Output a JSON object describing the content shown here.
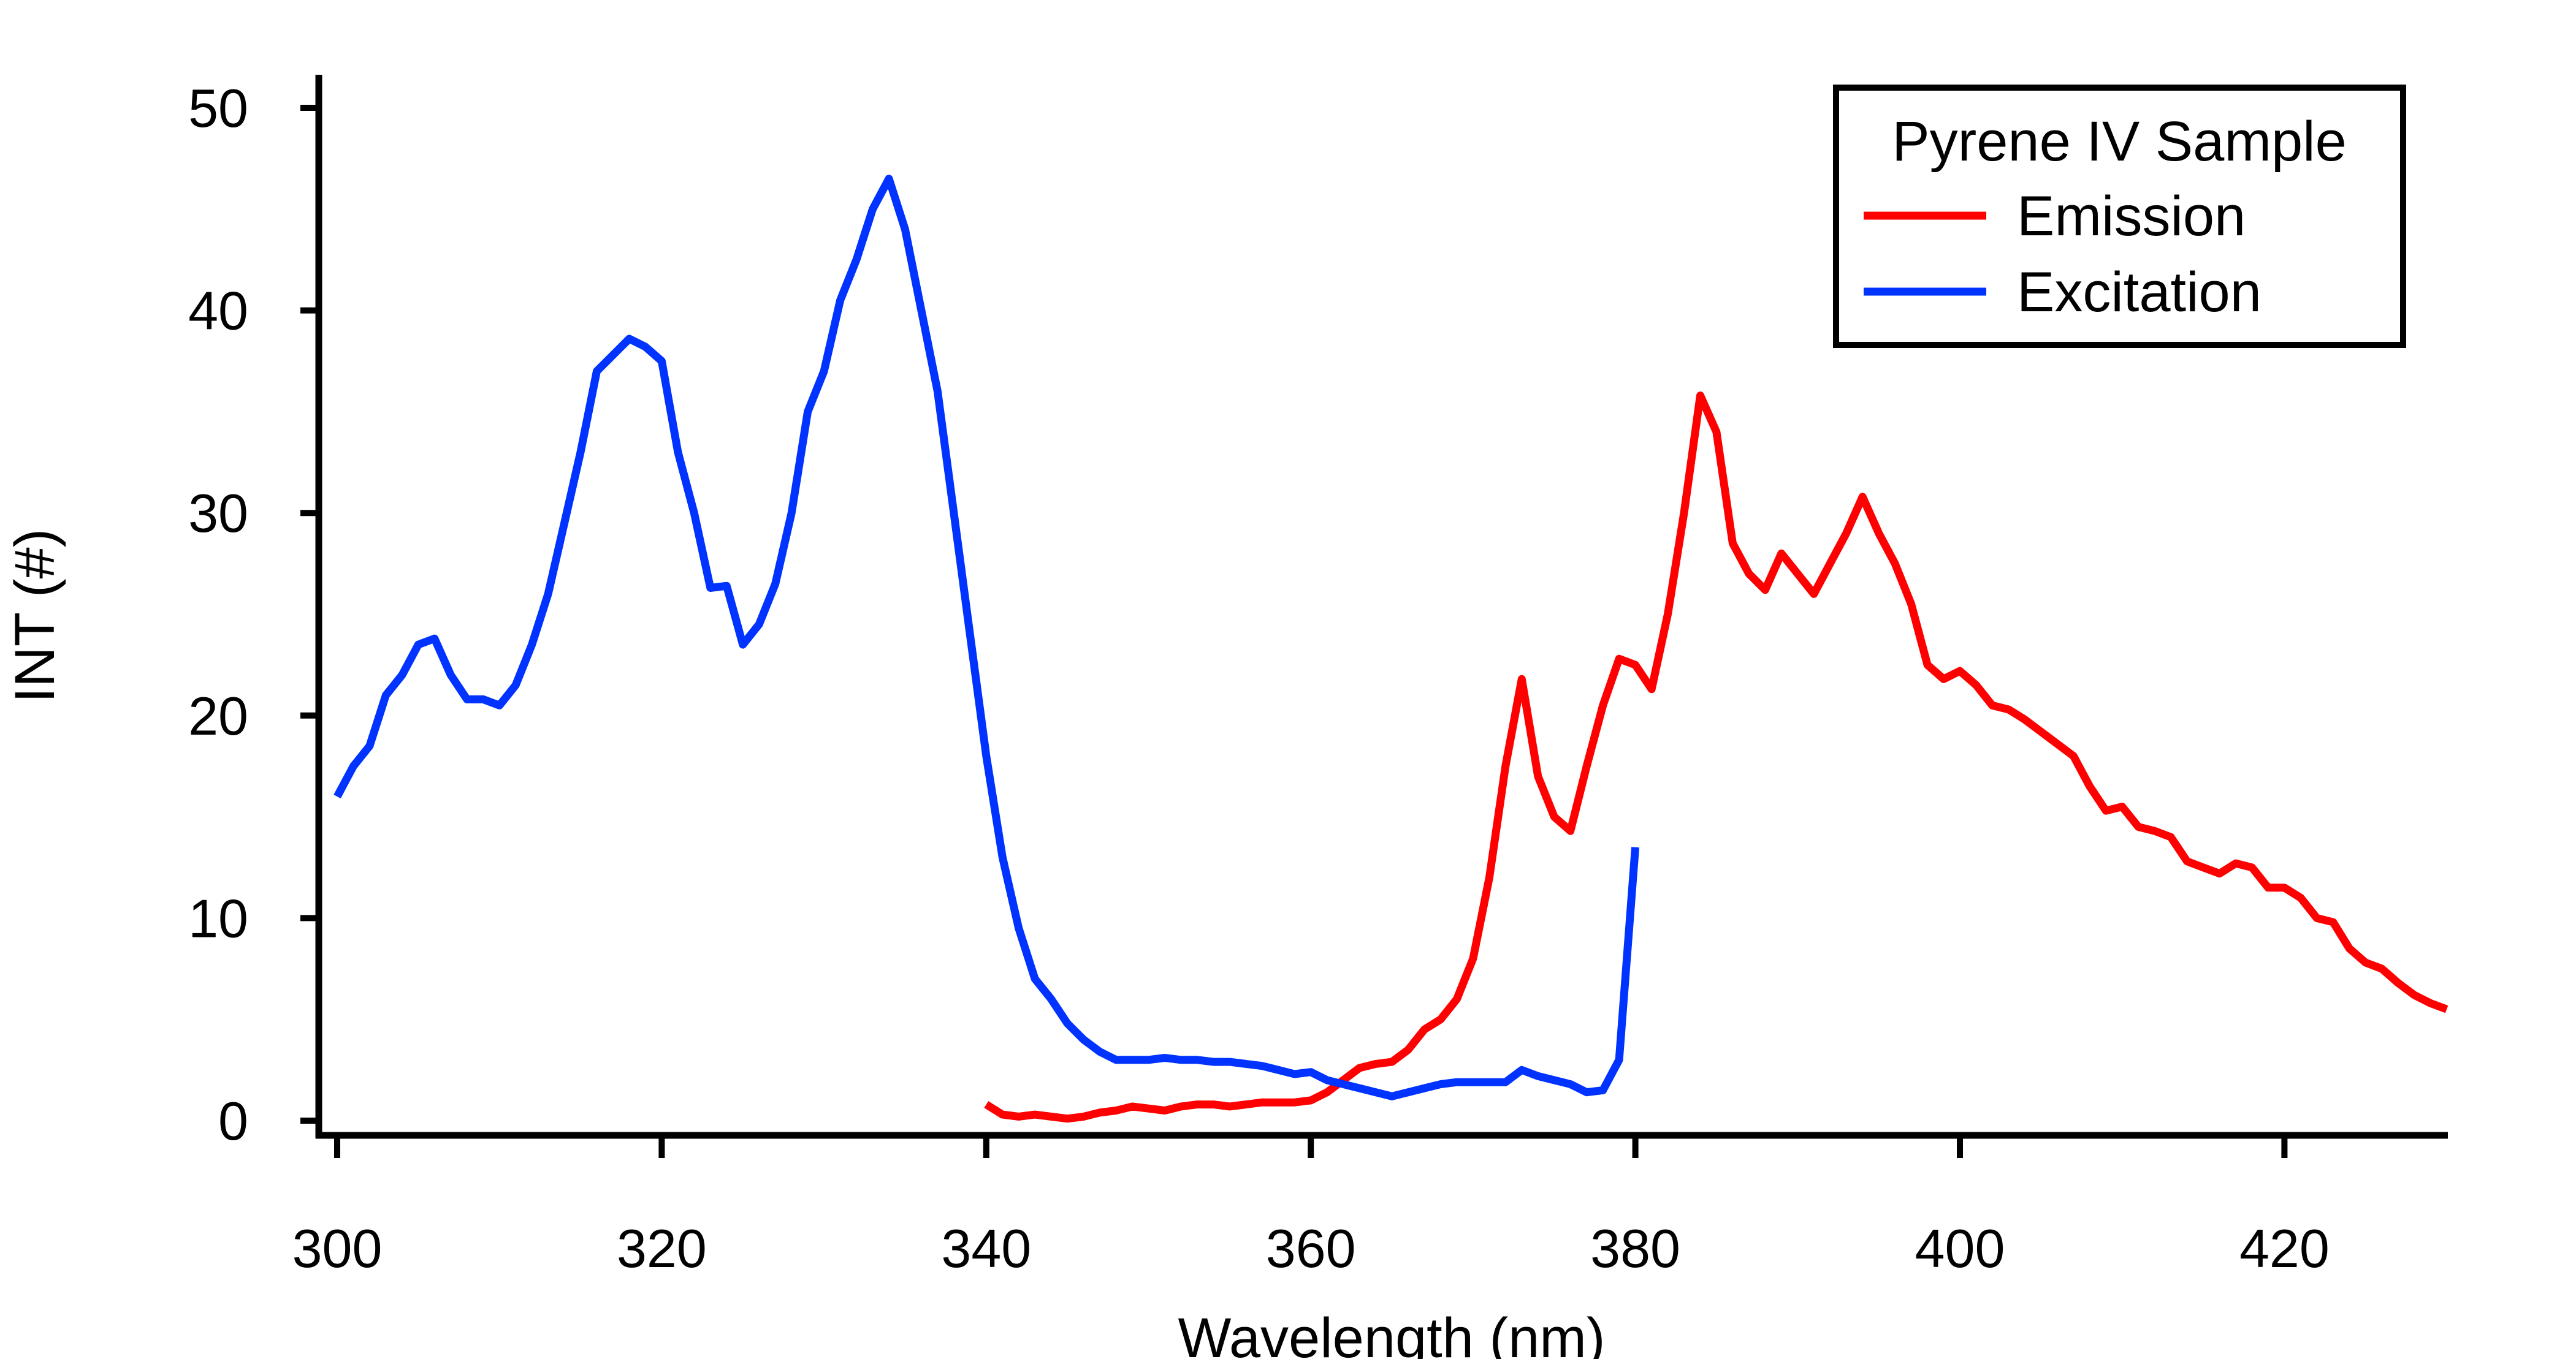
{
  "chart_data": {
    "type": "line",
    "title": "",
    "xlabel": "Wavelength (nm)",
    "ylabel": "INT (#)",
    "xlim": [
      299,
      430
    ],
    "ylim": [
      -1,
      51
    ],
    "xticks": [
      300,
      320,
      340,
      360,
      380,
      400,
      420
    ],
    "yticks": [
      0,
      10,
      20,
      30,
      40,
      50
    ],
    "grid": false,
    "legend": {
      "title": "Pyrene IV Sample",
      "placement": "top-right"
    },
    "series": [
      {
        "name": "Emission",
        "color": "#ff0000",
        "x": [
          340,
          341,
          342,
          343,
          344,
          345,
          346,
          347,
          348,
          349,
          350,
          351,
          352,
          353,
          354,
          355,
          356,
          357,
          358,
          359,
          360,
          361,
          362,
          363,
          364,
          365,
          366,
          367,
          368,
          369,
          370,
          371,
          372,
          373,
          374,
          375,
          376,
          377,
          378,
          379,
          380,
          381,
          382,
          383,
          384,
          385,
          386,
          387,
          388,
          389,
          390,
          391,
          392,
          393,
          394,
          395,
          396,
          397,
          398,
          399,
          400,
          401,
          402,
          403,
          404,
          405,
          406,
          407,
          408,
          409,
          410,
          411,
          412,
          413,
          414,
          415,
          416,
          417,
          418,
          419,
          420,
          421,
          422,
          423,
          424,
          425,
          426,
          427,
          428,
          429,
          430
        ],
        "y": [
          0.8,
          0.3,
          0.2,
          0.3,
          0.2,
          0.1,
          0.2,
          0.4,
          0.5,
          0.7,
          0.6,
          0.5,
          0.7,
          0.8,
          0.8,
          0.7,
          0.8,
          0.9,
          0.9,
          0.9,
          1.0,
          1.4,
          2.0,
          2.6,
          2.8,
          2.9,
          3.5,
          4.5,
          5.0,
          6.0,
          8.0,
          12.0,
          17.5,
          21.8,
          17.0,
          15.0,
          14.3,
          17.5,
          20.5,
          22.8,
          22.5,
          21.3,
          25.0,
          30.0,
          35.8,
          34.0,
          28.5,
          27.0,
          26.2,
          28.0,
          27.0,
          26.0,
          27.5,
          29.0,
          30.8,
          29.0,
          27.5,
          25.5,
          22.5,
          21.8,
          22.2,
          21.5,
          20.5,
          20.3,
          19.8,
          19.2,
          18.6,
          18.0,
          16.5,
          15.3,
          15.5,
          14.5,
          14.3,
          14.0,
          12.8,
          12.5,
          12.2,
          12.7,
          12.5,
          11.5,
          11.5,
          11.0,
          10.0,
          9.8,
          8.5,
          7.8,
          7.5,
          6.8,
          6.2,
          5.8,
          5.5
        ]
      },
      {
        "name": "Excitation",
        "color": "#0033ff",
        "x": [
          300,
          301,
          302,
          303,
          304,
          305,
          306,
          307,
          308,
          309,
          310,
          311,
          312,
          313,
          314,
          315,
          316,
          317,
          318,
          319,
          320,
          321,
          322,
          323,
          324,
          325,
          326,
          327,
          328,
          329,
          330,
          331,
          332,
          333,
          334,
          335,
          336,
          337,
          338,
          339,
          340,
          341,
          342,
          343,
          344,
          345,
          346,
          347,
          348,
          349,
          350,
          351,
          352,
          353,
          354,
          355,
          356,
          357,
          358,
          359,
          360,
          361,
          362,
          363,
          364,
          365,
          366,
          367,
          368,
          369,
          370,
          371,
          372,
          373,
          374,
          375,
          376,
          377,
          378,
          379,
          380
        ],
        "y": [
          16.0,
          17.5,
          18.5,
          21.0,
          22.0,
          23.5,
          23.8,
          22.0,
          20.8,
          20.8,
          20.5,
          21.5,
          23.5,
          26.0,
          29.5,
          33.0,
          37.0,
          37.8,
          38.6,
          38.2,
          37.5,
          33.0,
          30.0,
          26.3,
          26.4,
          23.5,
          24.5,
          26.5,
          30.0,
          35.0,
          37.0,
          40.5,
          42.5,
          45.0,
          46.5,
          44.0,
          40.0,
          36.0,
          30.0,
          24.0,
          18.0,
          13.0,
          9.5,
          7.0,
          6.0,
          4.8,
          4.0,
          3.4,
          3.0,
          3.0,
          3.0,
          3.1,
          3.0,
          3.0,
          2.9,
          2.9,
          2.8,
          2.7,
          2.5,
          2.3,
          2.4,
          2.0,
          1.8,
          1.6,
          1.4,
          1.2,
          1.4,
          1.6,
          1.8,
          1.9,
          1.9,
          1.9,
          1.9,
          2.5,
          2.2,
          2.0,
          1.8,
          1.4,
          1.5,
          3.0,
          13.5
        ]
      }
    ]
  }
}
